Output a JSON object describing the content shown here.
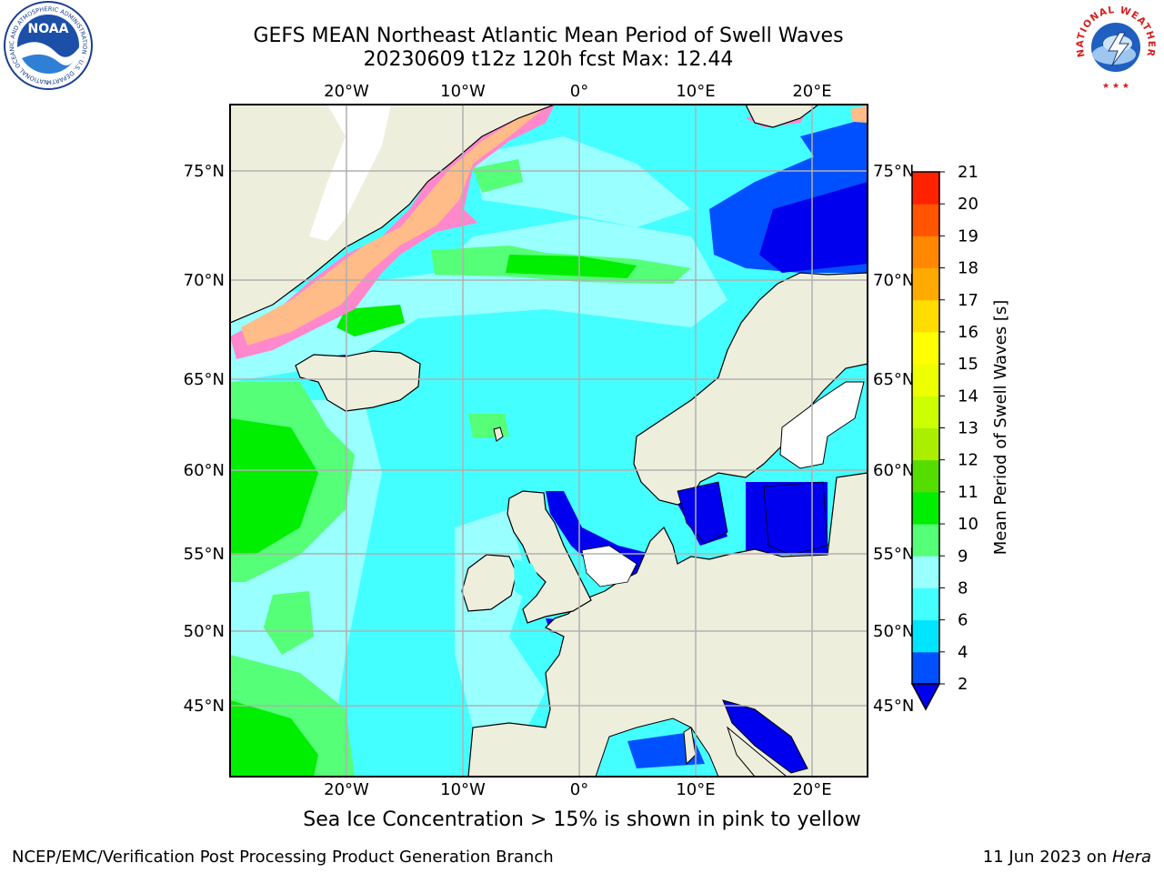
{
  "header": {
    "title_line1": "GEFS MEAN Northeast Atlantic Mean Period of Swell Waves",
    "title_line2": "20230609 t12z 120h fcst   Max: 12.44"
  },
  "logos": {
    "left": "NOAA",
    "left_ring_text": "NATIONAL OCEANIC AND ATMOSPHERIC ADMINISTRATION · U.S. DEPARTMENT OF COMMERCE",
    "right_ring_text": "NATIONAL WEATHER SERVICE"
  },
  "map": {
    "lon_labels": [
      "20°W",
      "10°W",
      "0°",
      "10°E",
      "20°E"
    ],
    "lat_labels": [
      "75°N",
      "70°N",
      "65°N",
      "60°N",
      "55°N",
      "50°N",
      "45°N"
    ],
    "colors": {
      "land": "#eeeedd",
      "ice": "#ff88cc",
      "grid": "#b0b0b0"
    }
  },
  "colorbar": {
    "label": "Mean Period of Swell Waves [s]",
    "ticks": [
      "2",
      "4",
      "6",
      "8",
      "9",
      "10",
      "11",
      "12",
      "13",
      "14",
      "15",
      "16",
      "17",
      "18",
      "19",
      "20",
      "21"
    ],
    "colors": [
      "#0050ff",
      "#00e5ff",
      "#44ffff",
      "#99ffff",
      "#55ff77",
      "#00ee00",
      "#55dd00",
      "#aaee00",
      "#ccff00",
      "#eeff00",
      "#ffff00",
      "#ffdd00",
      "#ffaa00",
      "#ff8800",
      "#ff5500",
      "#ff2200"
    ],
    "extend_color": "#0000ee"
  },
  "note": "Sea Ice Concentration > 15% is shown in pink to yellow",
  "footer": {
    "left": "NCEP/EMC/Verification Post Processing Product Generation Branch",
    "right_prefix": "11 Jun 2023 on ",
    "right_host": "Hera"
  }
}
